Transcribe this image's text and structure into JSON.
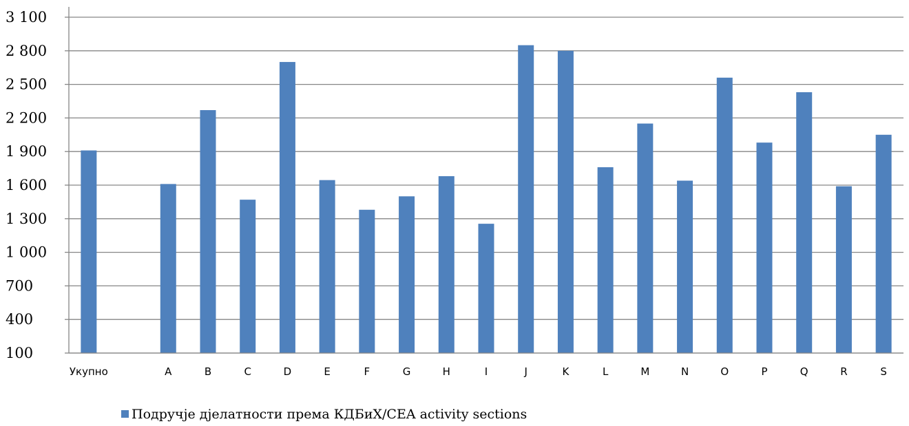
{
  "chart_data": {
    "type": "bar",
    "categories": [
      "Укупно",
      "",
      "A",
      "B",
      "C",
      "D",
      "E",
      "F",
      "G",
      "H",
      "I",
      "J",
      "K",
      "L",
      "M",
      "N",
      "O",
      "P",
      "Q",
      "R",
      "S"
    ],
    "series": [
      {
        "name": "Подручје дјелатности према КДБиХ/CEA activity sections",
        "color": "#4F81BD",
        "values": [
          1910,
          null,
          1610,
          2270,
          1470,
          2700,
          1645,
          1380,
          1500,
          1680,
          1255,
          2850,
          2800,
          1760,
          2150,
          1640,
          2560,
          1980,
          2430,
          1590,
          2050
        ]
      }
    ],
    "ylim": [
      100,
      3100
    ],
    "yticks": [
      100,
      400,
      700,
      1000,
      1300,
      1600,
      1900,
      2200,
      2500,
      2800,
      3100
    ],
    "ytick_labels": [
      "100",
      "400",
      "700",
      "1 000",
      "1 300",
      "1 600",
      "1 900",
      "2 200",
      "2 500",
      "2 800",
      "3 100"
    ],
    "grid": true,
    "legend_position": "bottom",
    "title": "",
    "xlabel": "",
    "ylabel": ""
  }
}
